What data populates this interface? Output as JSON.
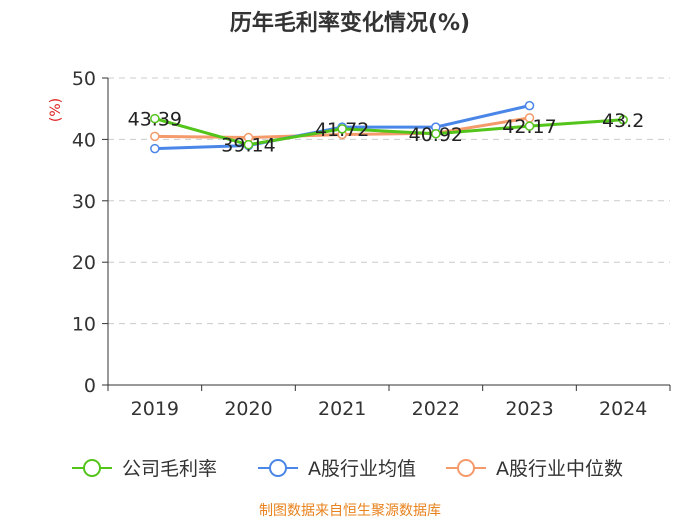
{
  "chart_data": {
    "type": "line",
    "title": "历年毛利率变化情况(%)",
    "ylabel": "(%)",
    "xlabel": "",
    "categories": [
      "2019",
      "2020",
      "2021",
      "2022",
      "2023",
      "2024"
    ],
    "ylim": [
      0,
      50
    ],
    "yticks": [
      0,
      10,
      20,
      30,
      40,
      50
    ],
    "grid": true,
    "legend_position": "bottom",
    "series": [
      {
        "name": "公司毛利率",
        "color": "#52c41a",
        "values": [
          43.39,
          39.14,
          41.72,
          40.92,
          42.17,
          43.2
        ],
        "labels": [
          "43.39",
          "39.14",
          "41.72",
          "40.92",
          "42.17",
          "43.2"
        ]
      },
      {
        "name": "A股行业均值",
        "color": "#4a86e8",
        "values": [
          38.5,
          39.0,
          42.0,
          42.0,
          45.5,
          null
        ]
      },
      {
        "name": "A股行业中位数",
        "color": "#f59a6a",
        "values": [
          40.5,
          40.3,
          40.8,
          41.0,
          43.5,
          null
        ]
      }
    ]
  },
  "source": "制图数据来自恒生聚源数据库"
}
